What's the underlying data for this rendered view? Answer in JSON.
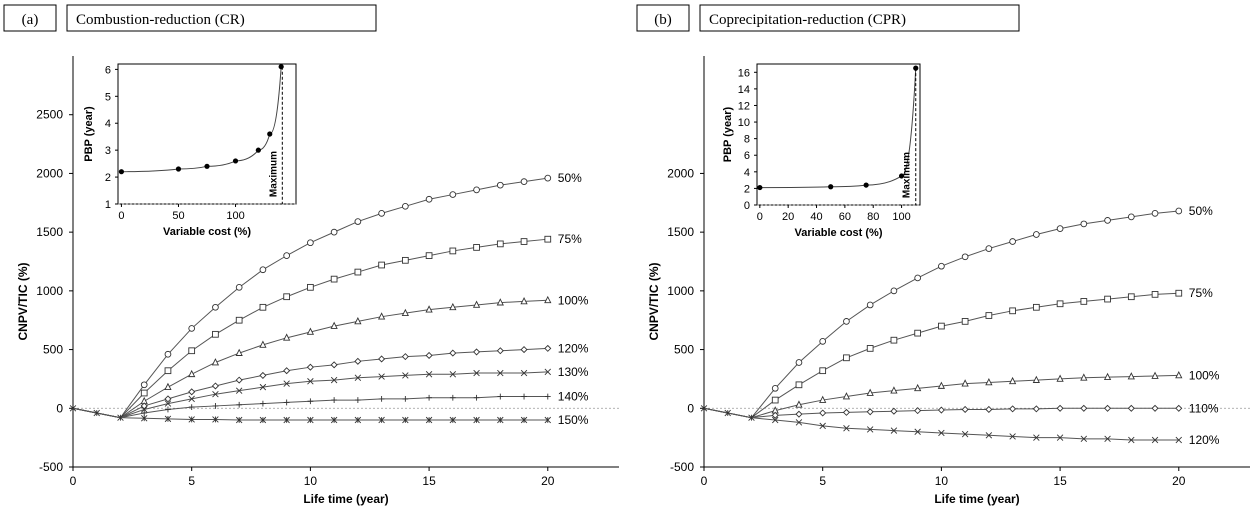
{
  "panels": [
    {
      "tag": "(a)",
      "title": "Combustion-reduction (CR)",
      "chart_data": {
        "type": "line",
        "xlabel": "Life time (year)",
        "ylabel": "CNPV/TIC (%)",
        "xlim": [
          0,
          23
        ],
        "ylim": [
          -500,
          3000
        ],
        "xticks": [
          0,
          5,
          10,
          15,
          20
        ],
        "yticks": [
          -500,
          0,
          500,
          1000,
          1500,
          2000,
          2500
        ],
        "grid": false,
        "x": [
          0,
          1,
          2,
          3,
          4,
          5,
          6,
          7,
          8,
          9,
          10,
          11,
          12,
          13,
          14,
          15,
          16,
          17,
          18,
          19,
          20
        ],
        "series": [
          {
            "name": "50%",
            "marker": "circle",
            "values": [
              0,
              -40,
              -80,
              200,
              460,
              680,
              860,
              1030,
              1180,
              1300,
              1410,
              1500,
              1590,
              1660,
              1720,
              1780,
              1820,
              1860,
              1900,
              1930,
              1960
            ]
          },
          {
            "name": "75%",
            "marker": "square",
            "values": [
              0,
              -40,
              -80,
              130,
              320,
              490,
              630,
              750,
              860,
              950,
              1030,
              1100,
              1160,
              1220,
              1260,
              1300,
              1340,
              1370,
              1400,
              1420,
              1440
            ]
          },
          {
            "name": "100%",
            "marker": "triangle",
            "values": [
              0,
              -40,
              -80,
              60,
              180,
              290,
              390,
              470,
              540,
              600,
              650,
              700,
              740,
              780,
              810,
              840,
              860,
              880,
              900,
              910,
              920
            ]
          },
          {
            "name": "120%",
            "marker": "diamond",
            "values": [
              0,
              -40,
              -80,
              20,
              80,
              140,
              190,
              240,
              280,
              320,
              350,
              370,
              400,
              420,
              440,
              450,
              470,
              480,
              490,
              500,
              510
            ]
          },
          {
            "name": "130%",
            "marker": "x",
            "values": [
              0,
              -40,
              -80,
              -10,
              40,
              80,
              120,
              150,
              180,
              210,
              230,
              240,
              260,
              270,
              280,
              290,
              290,
              300,
              300,
              300,
              310
            ]
          },
          {
            "name": "140%",
            "marker": "plus",
            "values": [
              0,
              -40,
              -80,
              -40,
              -10,
              10,
              20,
              30,
              40,
              50,
              60,
              70,
              70,
              80,
              80,
              90,
              90,
              90,
              100,
              100,
              100
            ]
          },
          {
            "name": "150%",
            "marker": "star",
            "values": [
              0,
              -40,
              -80,
              -85,
              -90,
              -95,
              -95,
              -100,
              -100,
              -100,
              -100,
              -100,
              -100,
              -100,
              -100,
              -100,
              -100,
              -100,
              -100,
              -100,
              -100
            ]
          }
        ],
        "inset": {
          "type": "line",
          "xlabel": "Variable cost (%)",
          "ylabel": "PBP (year)",
          "xlim": [
            -3,
            153
          ],
          "ylim": [
            1,
            6.2
          ],
          "xticks": [
            0,
            50,
            100
          ],
          "yticks": [
            1,
            2,
            3,
            4,
            5,
            6
          ],
          "x": [
            0,
            50,
            75,
            100,
            120,
            130,
            140
          ],
          "values": [
            2.2,
            2.3,
            2.4,
            2.6,
            3.0,
            3.6,
            6.1
          ],
          "annotation": "Maximum",
          "annotation_x": 141
        }
      }
    },
    {
      "tag": "(b)",
      "title": "Coprecipitation-reduction (CPR)",
      "chart_data": {
        "type": "line",
        "xlabel": "Life time (year)",
        "ylabel": "CNPV/TIC (%)",
        "xlim": [
          0,
          23
        ],
        "ylim": [
          -500,
          3000
        ],
        "xticks": [
          0,
          5,
          10,
          15,
          20
        ],
        "yticks": [
          -500,
          0,
          500,
          1000,
          1500,
          2000
        ],
        "grid": false,
        "x": [
          0,
          1,
          2,
          3,
          4,
          5,
          6,
          7,
          8,
          9,
          10,
          11,
          12,
          13,
          14,
          15,
          16,
          17,
          18,
          19,
          20
        ],
        "series": [
          {
            "name": "50%",
            "marker": "circle",
            "values": [
              0,
              -40,
              -80,
              170,
              390,
              570,
              740,
              880,
              1000,
              1110,
              1210,
              1290,
              1360,
              1420,
              1480,
              1530,
              1570,
              1600,
              1630,
              1660,
              1680
            ]
          },
          {
            "name": "75%",
            "marker": "square",
            "values": [
              0,
              -40,
              -80,
              70,
              200,
              320,
              430,
              510,
              580,
              640,
              700,
              740,
              790,
              830,
              860,
              890,
              910,
              930,
              950,
              970,
              980
            ]
          },
          {
            "name": "100%",
            "marker": "triangle",
            "values": [
              0,
              -40,
              -80,
              -20,
              30,
              70,
              100,
              130,
              150,
              170,
              190,
              210,
              220,
              230,
              240,
              250,
              260,
              265,
              270,
              275,
              280
            ]
          },
          {
            "name": "110%",
            "marker": "diamond",
            "values": [
              0,
              -40,
              -80,
              -60,
              -50,
              -40,
              -35,
              -30,
              -25,
              -20,
              -15,
              -10,
              -10,
              -5,
              -5,
              0,
              0,
              0,
              0,
              0,
              0
            ]
          },
          {
            "name": "120%",
            "marker": "x",
            "values": [
              0,
              -40,
              -80,
              -100,
              -120,
              -150,
              -170,
              -180,
              -190,
              -200,
              -210,
              -220,
              -230,
              -240,
              -250,
              -250,
              -260,
              -260,
              -270,
              -270,
              -270
            ]
          }
        ],
        "inset": {
          "type": "line",
          "xlabel": "Variable cost (%)",
          "ylabel": "PBP (year)",
          "xlim": [
            -2,
            113
          ],
          "ylim": [
            0,
            17
          ],
          "xticks": [
            0,
            20,
            40,
            60,
            80,
            100
          ],
          "yticks": [
            0,
            2,
            4,
            6,
            8,
            10,
            12,
            14,
            16
          ],
          "x": [
            0,
            50,
            75,
            100,
            110
          ],
          "values": [
            2.1,
            2.2,
            2.4,
            3.5,
            16.5
          ],
          "annotation": "Maximum",
          "annotation_x": 110
        }
      }
    }
  ]
}
